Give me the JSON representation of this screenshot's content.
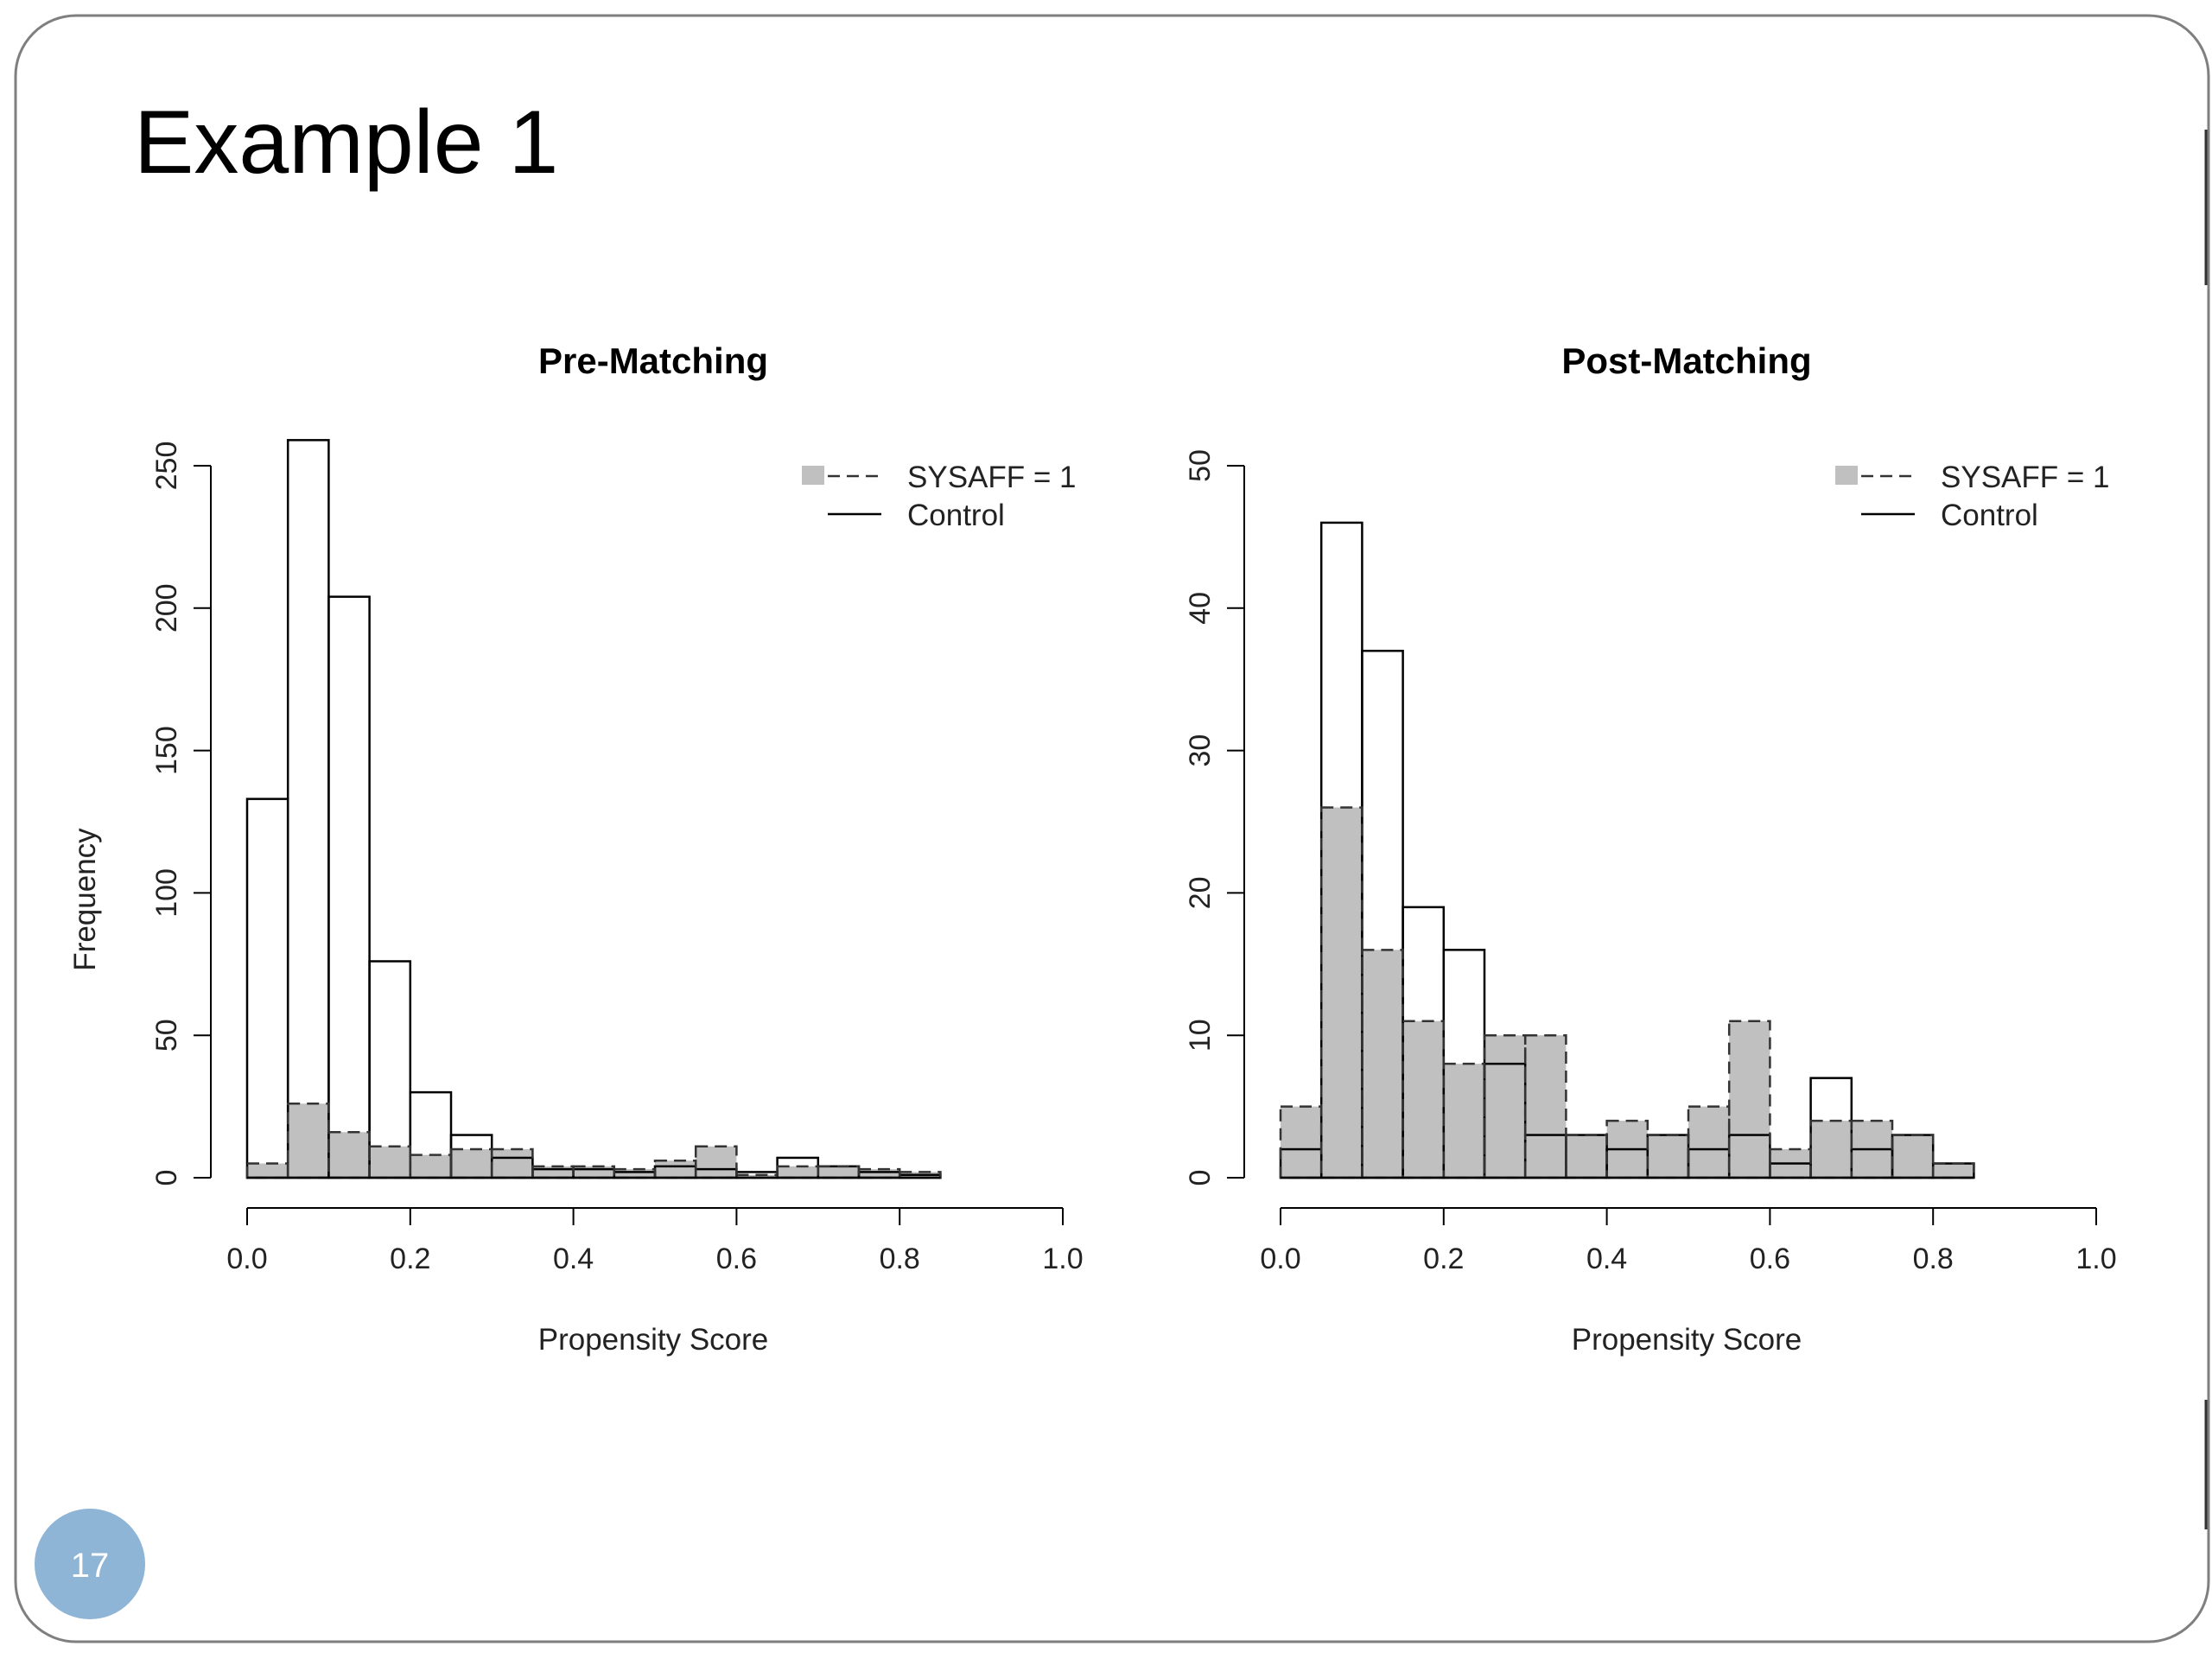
{
  "slide": {
    "title": "Example 1",
    "page_number": "17",
    "colors": {
      "border": "#7f7f7f",
      "badge": "#8eb4d6",
      "fill_gray": "#c0c0c0",
      "ink": "#000000"
    }
  },
  "chart_data": [
    {
      "type": "bar",
      "title": "Pre-Matching",
      "xlabel": "Propensity Score",
      "ylabel": "Frequency",
      "xlim": [
        0,
        1.0
      ],
      "ylim": [
        0,
        250
      ],
      "x_ticks": [
        "0.0",
        "0.2",
        "0.4",
        "0.6",
        "0.8",
        "1.0"
      ],
      "y_ticks": [
        "0",
        "50",
        "100",
        "150",
        "200",
        "250"
      ],
      "bin_edges": [
        0.0,
        0.05,
        0.1,
        0.15,
        0.2,
        0.25,
        0.3,
        0.35,
        0.4,
        0.45,
        0.5,
        0.55,
        0.6,
        0.65,
        0.7,
        0.75,
        0.8,
        0.85
      ],
      "series": [
        {
          "name": "Control",
          "style": "solid-outline",
          "values": [
            133,
            259,
            204,
            76,
            30,
            15,
            7,
            3,
            3,
            2,
            4,
            3,
            2,
            7,
            4,
            2,
            1
          ]
        },
        {
          "name": "SYSAFF = 1",
          "style": "gray-dashed",
          "values": [
            5,
            26,
            16,
            11,
            8,
            10,
            10,
            4,
            4,
            3,
            6,
            11,
            1,
            4,
            4,
            3,
            2
          ]
        }
      ],
      "legend": {
        "position": "top-right",
        "entries": [
          "SYSAFF = 1",
          "Control"
        ]
      }
    },
    {
      "type": "bar",
      "title": "Post-Matching",
      "xlabel": "Propensity Score",
      "xlim": [
        0,
        1.0
      ],
      "ylim": [
        0,
        50
      ],
      "x_ticks": [
        "0.0",
        "0.2",
        "0.4",
        "0.6",
        "0.8",
        "1.0"
      ],
      "y_ticks": [
        "0",
        "10",
        "20",
        "30",
        "40",
        "50"
      ],
      "bin_edges": [
        0.0,
        0.05,
        0.1,
        0.15,
        0.2,
        0.25,
        0.3,
        0.35,
        0.4,
        0.45,
        0.5,
        0.55,
        0.6,
        0.65,
        0.7,
        0.75,
        0.8,
        0.85
      ],
      "series": [
        {
          "name": "Control",
          "style": "solid-outline",
          "values": [
            2,
            46,
            37,
            19,
            16,
            8,
            3,
            3,
            2,
            3,
            2,
            3,
            1,
            7,
            2,
            3,
            1
          ]
        },
        {
          "name": "SYSAFF = 1",
          "style": "gray-dashed",
          "values": [
            5,
            26,
            16,
            11,
            8,
            10,
            10,
            3,
            4,
            3,
            5,
            11,
            2,
            4,
            4,
            3,
            1
          ]
        }
      ],
      "legend": {
        "position": "top-right",
        "entries": [
          "SYSAFF = 1",
          "Control"
        ]
      }
    }
  ]
}
